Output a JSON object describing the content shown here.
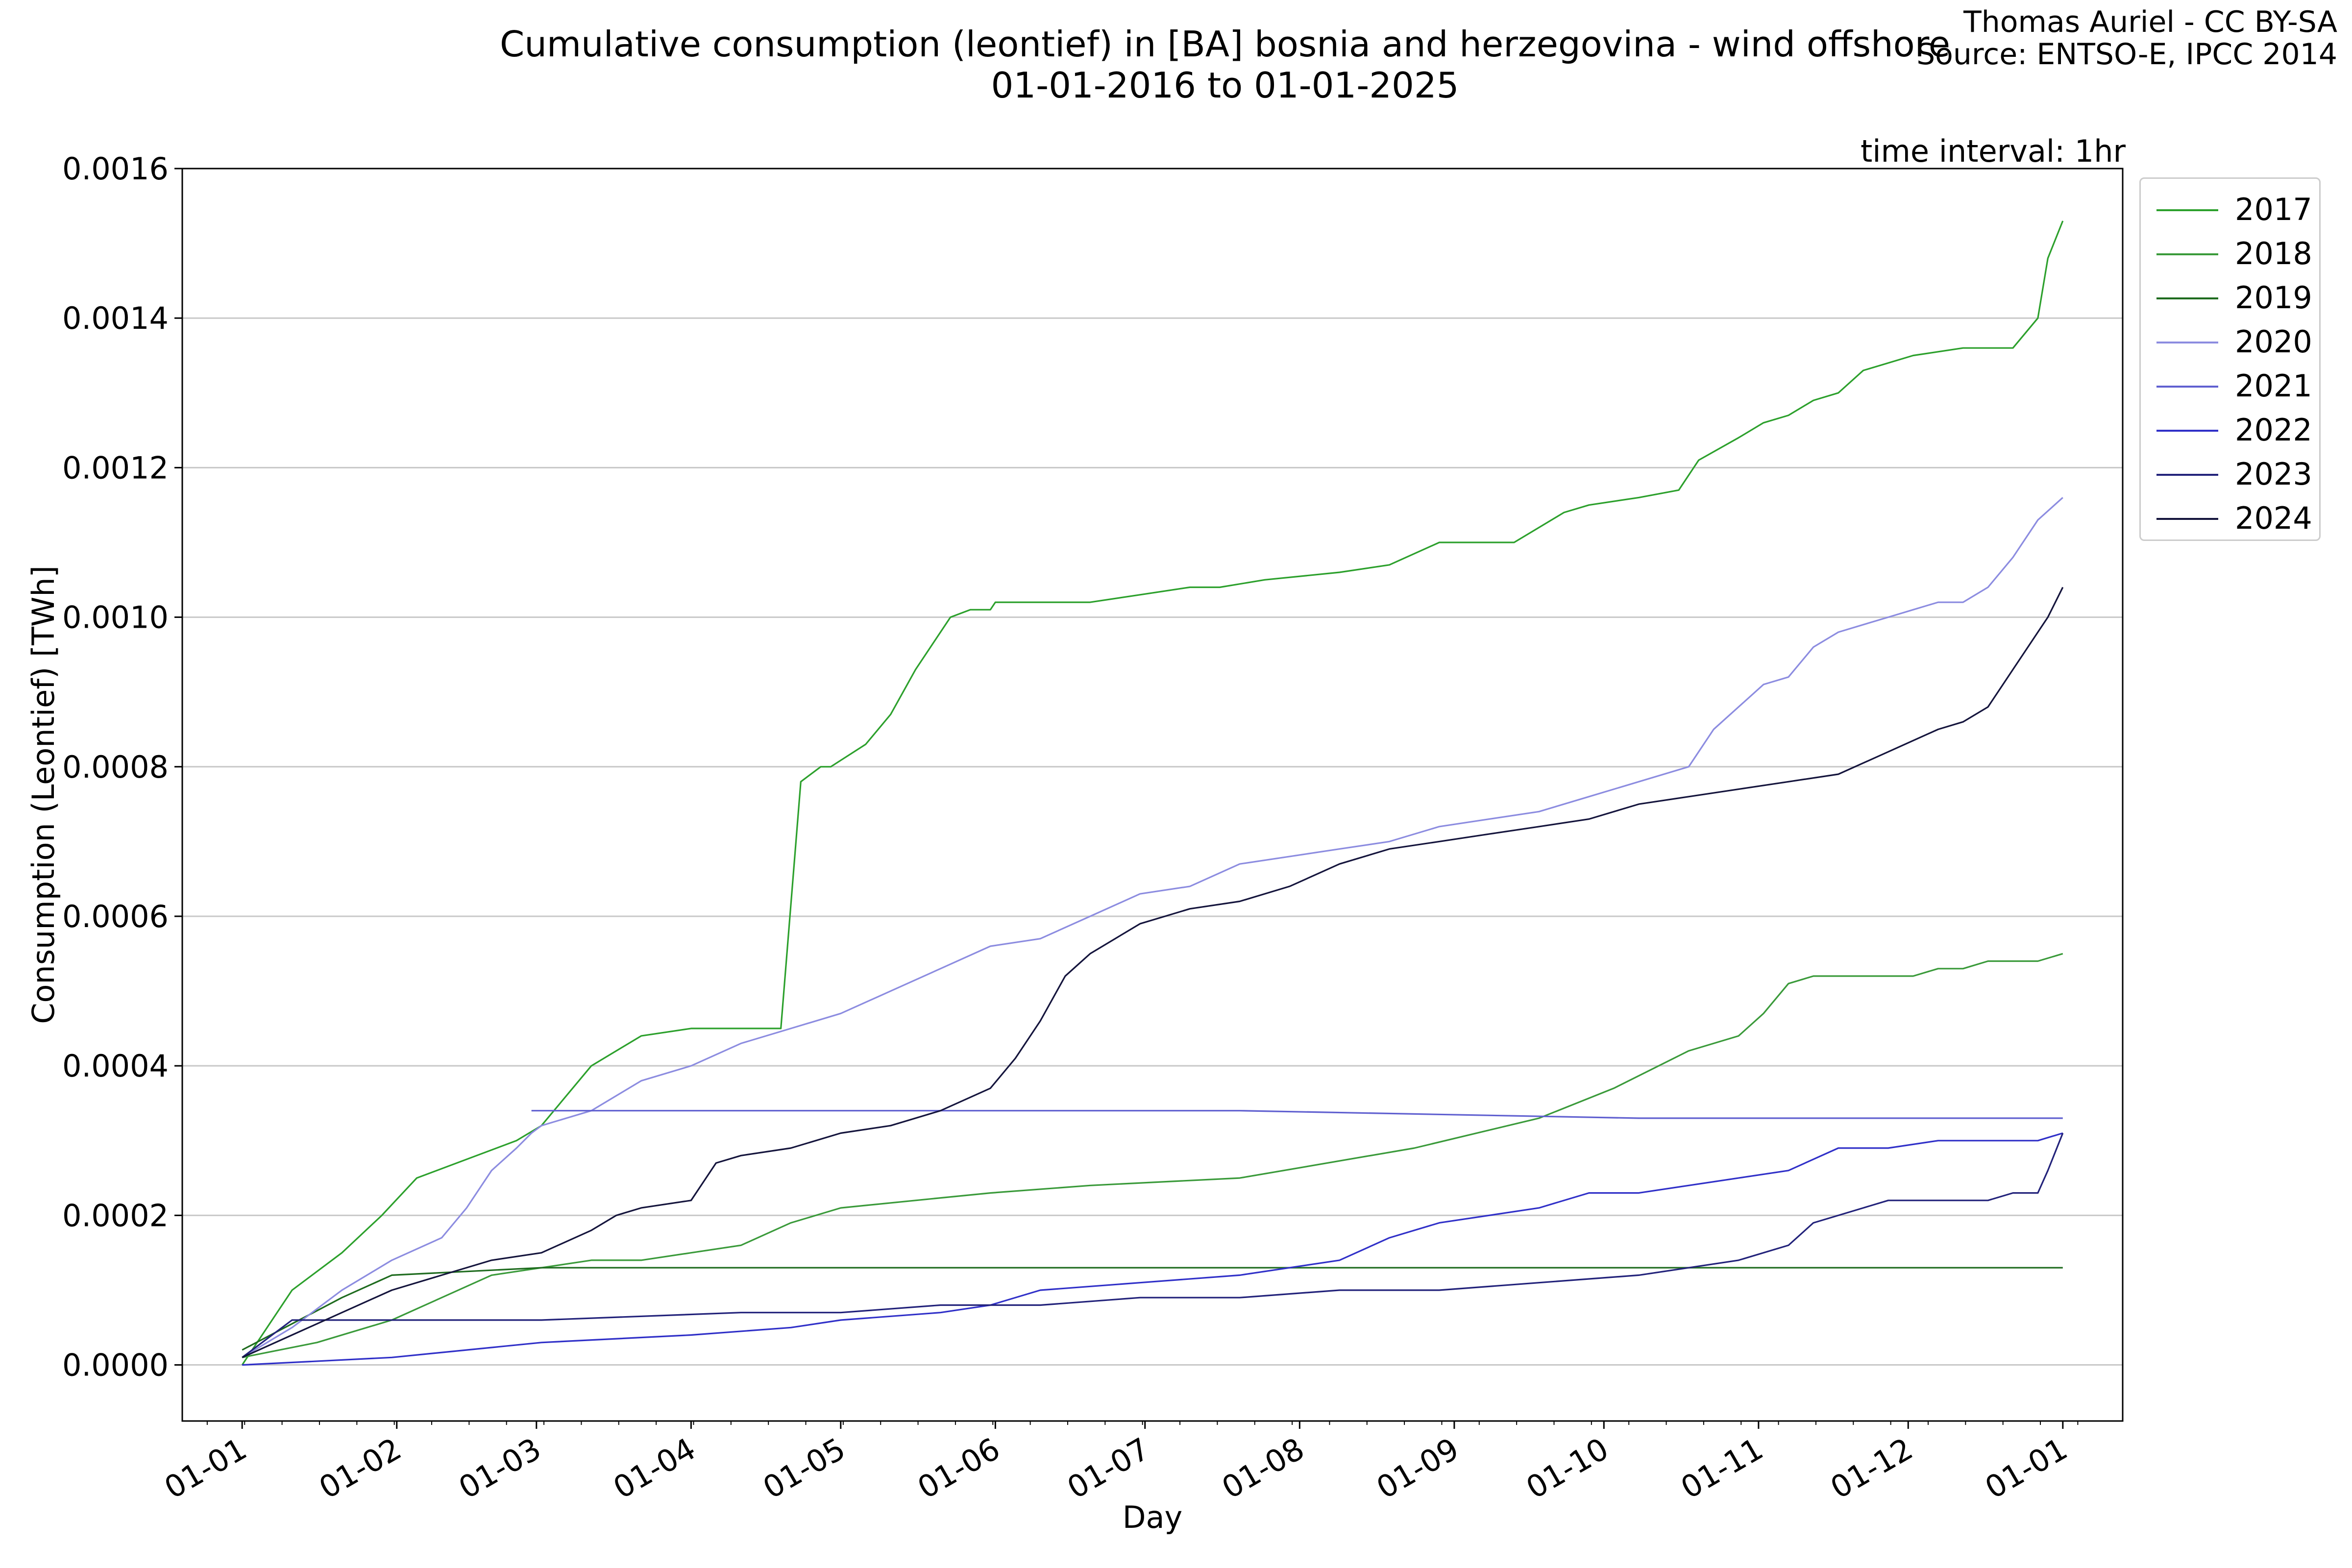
{
  "header": {
    "title_line1": "Cumulative consumption (leontief) in [BA] bosnia and herzegovina - wind offshore",
    "title_line2": "01-01-2016 to 01-01-2025",
    "credit_line1": "Thomas Auriel - CC BY-SA",
    "credit_line2": "Source: ENTSO-E, IPCC 2014",
    "interval": "time interval: 1hr"
  },
  "chart_data": {
    "type": "line",
    "xlabel": "Day",
    "ylabel": "Consumption (Leontief) [TWh]",
    "x_ticks": [
      "01-01",
      "01-02",
      "01-03",
      "01-04",
      "01-05",
      "01-06",
      "01-07",
      "01-08",
      "01-09",
      "01-10",
      "01-11",
      "01-12",
      "01-01"
    ],
    "y_ticks": [
      "0.0000",
      "0.0002",
      "0.0004",
      "0.0006",
      "0.0008",
      "0.0010",
      "0.0012",
      "0.0014",
      "0.0016"
    ],
    "xlim": [
      -12,
      377
    ],
    "ylim": [
      -7.5e-05,
      0.0016
    ],
    "grid": "horizontal",
    "legend_position": "upper-right-outside",
    "series": [
      {
        "name": "2017",
        "color": "#2ca02c",
        "x": [
          0,
          10,
          20,
          28,
          35,
          55,
          60,
          70,
          80,
          90,
          100,
          108,
          112,
          116,
          118,
          125,
          130,
          135,
          138,
          142,
          146,
          150,
          151,
          160,
          170,
          180,
          190,
          196,
          205,
          220,
          230,
          240,
          255,
          265,
          270,
          280,
          288,
          292,
          300,
          305,
          310,
          315,
          320,
          325,
          335,
          345,
          355,
          360,
          362,
          365
        ],
        "y": [
          0.0,
          0.0001,
          0.00015,
          0.0002,
          0.00025,
          0.0003,
          0.00032,
          0.0004,
          0.00044,
          0.00045,
          0.00045,
          0.00045,
          0.00078,
          0.0008,
          0.0008,
          0.00083,
          0.00087,
          0.00093,
          0.00096,
          0.001,
          0.00101,
          0.00101,
          0.00102,
          0.00102,
          0.00102,
          0.00103,
          0.00104,
          0.00104,
          0.00105,
          0.00106,
          0.00107,
          0.0011,
          0.0011,
          0.00114,
          0.00115,
          0.00116,
          0.00117,
          0.00121,
          0.00124,
          0.00126,
          0.00127,
          0.00129,
          0.0013,
          0.00133,
          0.00135,
          0.00136,
          0.00136,
          0.0014,
          0.00148,
          0.00153
        ]
      },
      {
        "name": "2018",
        "color": "#3a9a3a",
        "x": [
          0,
          15,
          30,
          40,
          50,
          60,
          70,
          75,
          80,
          90,
          100,
          110,
          115,
          120,
          135,
          150,
          170,
          200,
          235,
          260,
          275,
          290,
          300,
          305,
          310,
          315,
          320,
          325,
          330,
          335,
          340,
          345,
          350,
          355,
          360,
          365
        ],
        "y": [
          1e-05,
          3e-05,
          6e-05,
          9e-05,
          0.00012,
          0.00013,
          0.00014,
          0.00014,
          0.00014,
          0.00015,
          0.00016,
          0.00019,
          0.0002,
          0.00021,
          0.00022,
          0.00023,
          0.00024,
          0.00025,
          0.00029,
          0.00033,
          0.00037,
          0.00042,
          0.00044,
          0.00047,
          0.00051,
          0.00052,
          0.00052,
          0.00052,
          0.00052,
          0.00052,
          0.00053,
          0.00053,
          0.00054,
          0.00054,
          0.00054,
          0.00055
        ]
      },
      {
        "name": "2019",
        "color": "#1e6b1e",
        "x": [
          0,
          20,
          30,
          60,
          120,
          180,
          240,
          300,
          310,
          320,
          330,
          340,
          345,
          348,
          350,
          355,
          360,
          363,
          365
        ],
        "y": [
          2e-05,
          9e-05,
          0.00012,
          0.00013,
          0.00013,
          0.00013,
          0.00013,
          0.00013,
          0.00013,
          0.00013,
          0.00013,
          0.00013,
          0.00013,
          0.00013,
          0.00013,
          0.00013,
          0.00013,
          0.00013,
          0.00013
        ]
      },
      {
        "name": "2020",
        "color": "#8c8ce0",
        "x": [
          0,
          10,
          20,
          30,
          40,
          45,
          50,
          55,
          58,
          60,
          70,
          80,
          90,
          100,
          110,
          120,
          130,
          140,
          150,
          160,
          170,
          180,
          190,
          200,
          210,
          220,
          230,
          240,
          250,
          260,
          270,
          280,
          290,
          295,
          300,
          305,
          310,
          315,
          320,
          325,
          330,
          335,
          340,
          345,
          350,
          355,
          360,
          365
        ],
        "y": [
          1e-05,
          5e-05,
          0.0001,
          0.00014,
          0.00017,
          0.00021,
          0.00026,
          0.00029,
          0.00031,
          0.00032,
          0.00034,
          0.00038,
          0.0004,
          0.00043,
          0.00045,
          0.00047,
          0.0005,
          0.00053,
          0.00056,
          0.00057,
          0.0006,
          0.00063,
          0.00064,
          0.00067,
          0.00068,
          0.00069,
          0.0007,
          0.00072,
          0.00073,
          0.00074,
          0.00076,
          0.00078,
          0.0008,
          0.00085,
          0.00088,
          0.00091,
          0.00092,
          0.00096,
          0.00098,
          0.00099,
          0.001,
          0.00101,
          0.00102,
          0.00102,
          0.00104,
          0.00108,
          0.00113,
          0.00116
        ]
      },
      {
        "name": "2021",
        "color": "#6060d0",
        "x": [
          58,
          90,
          120,
          200,
          280,
          365
        ],
        "y": [
          0.00034,
          0.00034,
          0.00034,
          0.00034,
          0.00033,
          0.00033
        ]
      },
      {
        "name": "2022",
        "color": "#3030c8",
        "x": [
          0,
          30,
          60,
          90,
          110,
          120,
          140,
          150,
          160,
          180,
          200,
          220,
          230,
          240,
          260,
          270,
          280,
          290,
          300,
          310,
          320,
          330,
          340,
          350,
          360,
          365
        ],
        "y": [
          0.0,
          1e-05,
          3e-05,
          4e-05,
          5e-05,
          6e-05,
          7e-05,
          8e-05,
          0.0001,
          0.00011,
          0.00012,
          0.00014,
          0.00017,
          0.00019,
          0.00021,
          0.00023,
          0.00023,
          0.00024,
          0.00025,
          0.00026,
          0.00029,
          0.00029,
          0.0003,
          0.0003,
          0.0003,
          0.00031
        ]
      },
      {
        "name": "2023",
        "color": "#22227a",
        "x": [
          0,
          10,
          20,
          60,
          100,
          120,
          140,
          160,
          180,
          200,
          220,
          240,
          260,
          280,
          290,
          300,
          310,
          315,
          320,
          325,
          330,
          340,
          350,
          355,
          360,
          362,
          365
        ],
        "y": [
          1e-05,
          6e-05,
          6e-05,
          6e-05,
          7e-05,
          7e-05,
          8e-05,
          8e-05,
          9e-05,
          9e-05,
          0.0001,
          0.0001,
          0.00011,
          0.00012,
          0.00013,
          0.00014,
          0.00016,
          0.00019,
          0.0002,
          0.00021,
          0.00022,
          0.00022,
          0.00022,
          0.00023,
          0.00023,
          0.00026,
          0.00031
        ]
      },
      {
        "name": "2024",
        "color": "#14143c",
        "x": [
          0,
          10,
          20,
          30,
          40,
          50,
          60,
          70,
          75,
          80,
          90,
          95,
          100,
          110,
          120,
          130,
          140,
          150,
          155,
          160,
          165,
          170,
          175,
          180,
          185,
          190,
          200,
          210,
          220,
          230,
          240,
          250,
          260,
          270,
          280,
          290,
          300,
          310,
          320,
          330,
          340,
          345,
          350,
          355,
          360,
          362,
          365
        ],
        "y": [
          1e-05,
          4e-05,
          7e-05,
          0.0001,
          0.00012,
          0.00014,
          0.00015,
          0.00018,
          0.0002,
          0.00021,
          0.00022,
          0.00027,
          0.00028,
          0.00029,
          0.00031,
          0.00032,
          0.00034,
          0.00037,
          0.00041,
          0.00046,
          0.00052,
          0.00055,
          0.00057,
          0.00059,
          0.0006,
          0.00061,
          0.00062,
          0.00064,
          0.00067,
          0.00069,
          0.0007,
          0.00071,
          0.00072,
          0.00073,
          0.00075,
          0.00076,
          0.00077,
          0.00078,
          0.00079,
          0.00082,
          0.00085,
          0.00086,
          0.00088,
          0.00093,
          0.00098,
          0.001,
          0.00104
        ]
      }
    ]
  }
}
